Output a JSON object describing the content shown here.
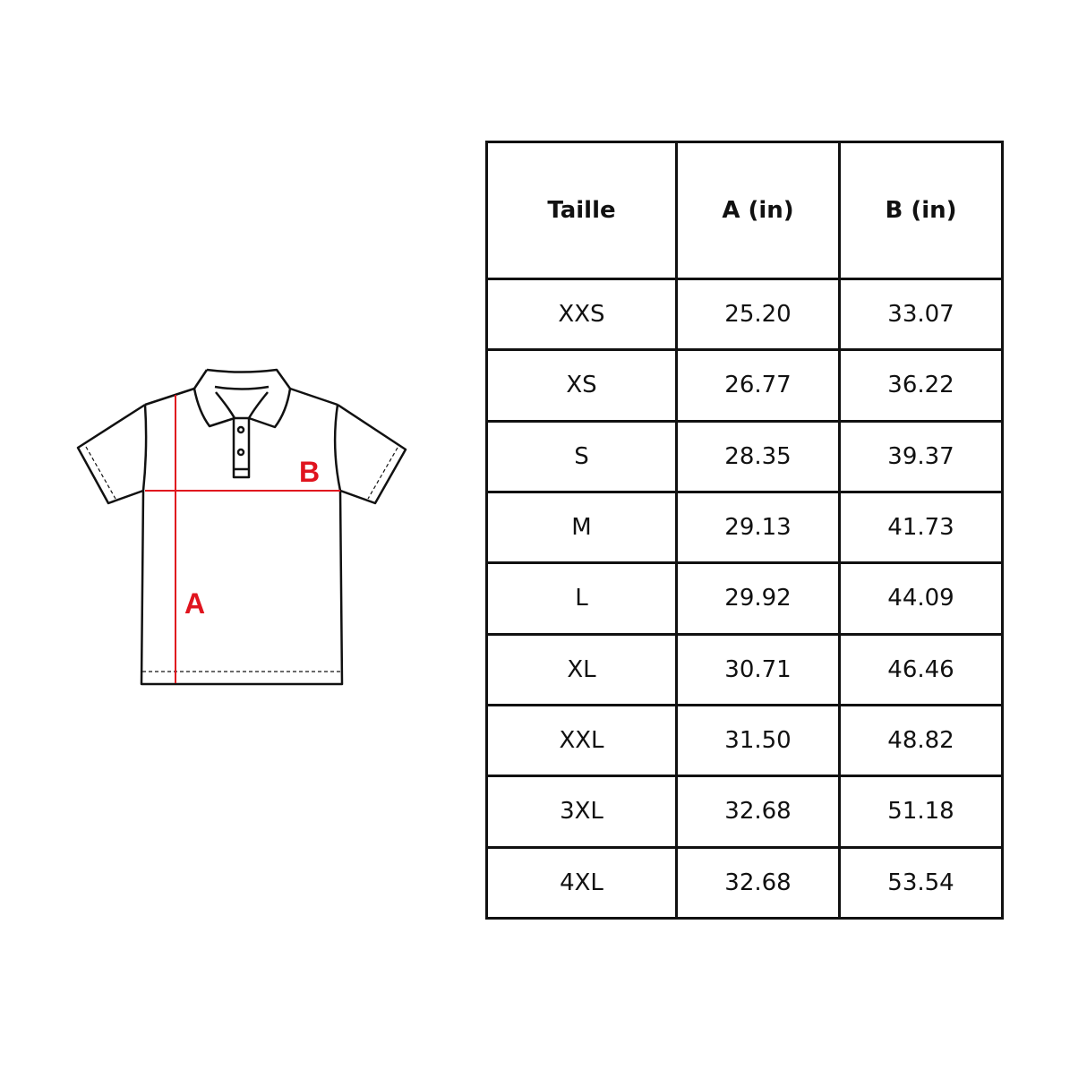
{
  "diagram": {
    "label_a": "A",
    "label_b": "B",
    "measure_color": "#e0141e"
  },
  "table": {
    "headers": [
      "Taille",
      "A (in)",
      "B (in)"
    ],
    "rows": [
      [
        "XXS",
        "25.20",
        "33.07"
      ],
      [
        "XS",
        "26.77",
        "36.22"
      ],
      [
        "S",
        "28.35",
        "39.37"
      ],
      [
        "M",
        "29.13",
        "41.73"
      ],
      [
        "L",
        "29.92",
        "44.09"
      ],
      [
        "XL",
        "30.71",
        "46.46"
      ],
      [
        "XXL",
        "31.50",
        "48.82"
      ],
      [
        "3XL",
        "32.68",
        "51.18"
      ],
      [
        "4XL",
        "32.68",
        "53.54"
      ]
    ]
  }
}
